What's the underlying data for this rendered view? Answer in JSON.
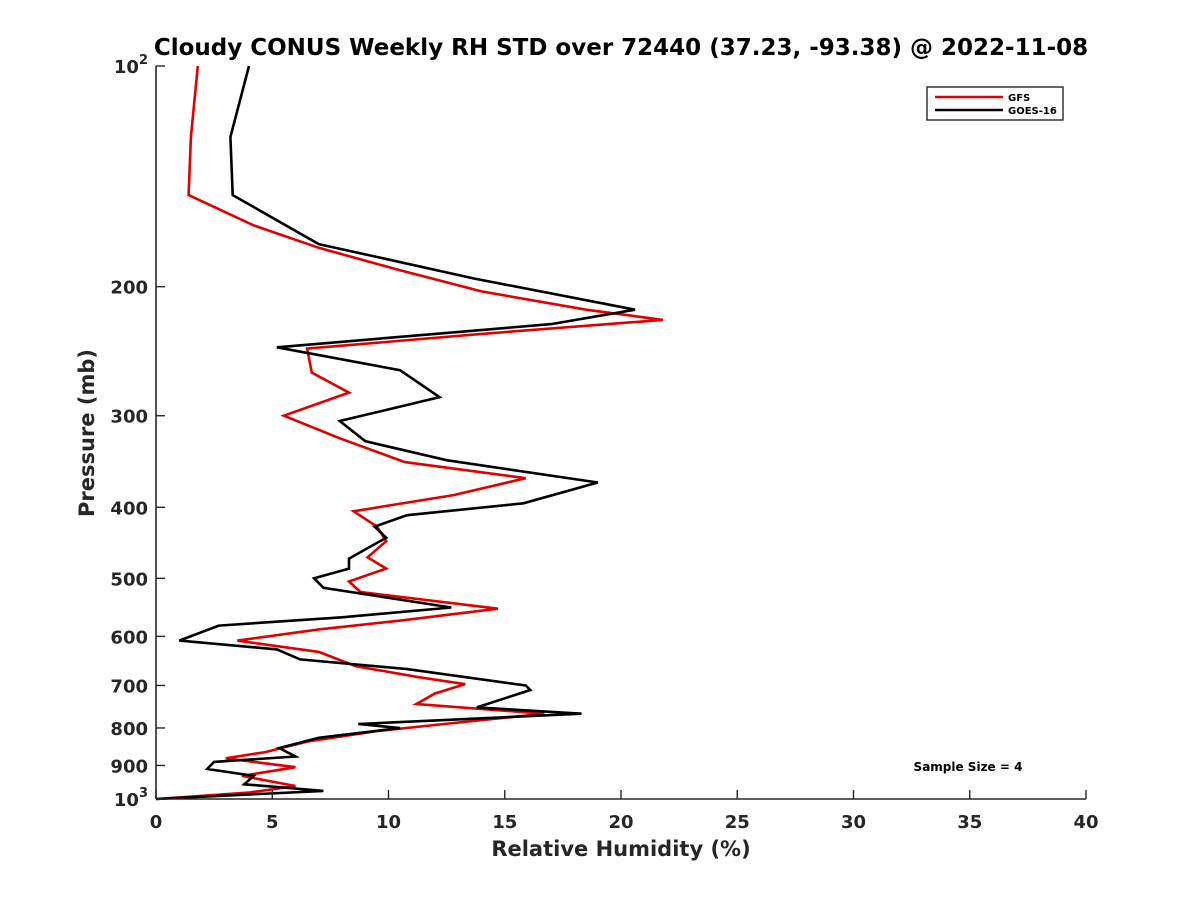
{
  "chart_data": {
    "type": "line",
    "title": "Cloudy CONUS Weekly RH STD over 72440 (37.23, -93.38) @ 2022-11-08",
    "xlabel": "Relative Humidity (%)",
    "ylabel": "Pressure (mb)",
    "xlim": [
      0,
      40
    ],
    "ylim": [
      100,
      1000
    ],
    "y_scale": "log",
    "y_reversed": true,
    "grid": false,
    "legend_position": "top-right",
    "x_ticks": [
      0,
      5,
      10,
      15,
      20,
      25,
      30,
      35,
      40
    ],
    "y_ticks": [
      {
        "value": 100,
        "base": "10",
        "exp": "2"
      },
      {
        "value": 200,
        "label": "200"
      },
      {
        "value": 300,
        "label": "300"
      },
      {
        "value": 400,
        "label": "400"
      },
      {
        "value": 500,
        "label": "500"
      },
      {
        "value": 600,
        "label": "600"
      },
      {
        "value": 700,
        "label": "700"
      },
      {
        "value": 800,
        "label": "800"
      },
      {
        "value": 900,
        "label": "900"
      },
      {
        "value": 1000,
        "base": "10",
        "exp": "3"
      }
    ],
    "annotation": "Sample Size = 4",
    "series": [
      {
        "name": "GFS",
        "color": "#e00000",
        "points": [
          [
            1.8,
            100
          ],
          [
            1.5,
            125
          ],
          [
            1.4,
            150
          ],
          [
            4.2,
            165
          ],
          [
            7.0,
            177
          ],
          [
            10.5,
            190
          ],
          [
            14.0,
            203
          ],
          [
            18.5,
            215
          ],
          [
            21.8,
            222
          ],
          [
            14.0,
            232
          ],
          [
            6.5,
            243
          ],
          [
            6.7,
            262
          ],
          [
            8.3,
            279
          ],
          [
            5.5,
            300
          ],
          [
            7.9,
            322
          ],
          [
            10.7,
            347
          ],
          [
            15.9,
            365
          ],
          [
            12.8,
            385
          ],
          [
            8.5,
            405
          ],
          [
            9.5,
            425
          ],
          [
            9.9,
            445
          ],
          [
            9.1,
            468
          ],
          [
            9.9,
            485
          ],
          [
            8.3,
            505
          ],
          [
            8.8,
            522
          ],
          [
            14.7,
            550
          ],
          [
            10.7,
            570
          ],
          [
            7.0,
            587
          ],
          [
            3.5,
            608
          ],
          [
            7.0,
            630
          ],
          [
            8.6,
            659
          ],
          [
            11.3,
            682
          ],
          [
            13.3,
            697
          ],
          [
            12.0,
            718
          ],
          [
            11.2,
            742
          ],
          [
            16.7,
            765
          ],
          [
            12.4,
            790
          ],
          [
            9.5,
            808
          ],
          [
            6.5,
            835
          ],
          [
            4.7,
            863
          ],
          [
            3.0,
            880
          ],
          [
            6.0,
            905
          ],
          [
            3.7,
            930
          ],
          [
            6.0,
            960
          ],
          [
            4.0,
            980
          ],
          [
            0.0,
            1000
          ]
        ]
      },
      {
        "name": "GOES-16",
        "color": "#000000",
        "points": [
          [
            4.0,
            100
          ],
          [
            3.2,
            125
          ],
          [
            3.3,
            150
          ],
          [
            7.0,
            175
          ],
          [
            13.7,
            195
          ],
          [
            20.6,
            215
          ],
          [
            17.0,
            225
          ],
          [
            12.0,
            232
          ],
          [
            5.2,
            242
          ],
          [
            10.5,
            260
          ],
          [
            12.2,
            283
          ],
          [
            7.9,
            305
          ],
          [
            9.0,
            325
          ],
          [
            12.5,
            345
          ],
          [
            19.0,
            370
          ],
          [
            15.8,
            395
          ],
          [
            10.8,
            410
          ],
          [
            9.4,
            425
          ],
          [
            9.9,
            440
          ],
          [
            8.3,
            470
          ],
          [
            8.3,
            485
          ],
          [
            6.8,
            500
          ],
          [
            7.2,
            515
          ],
          [
            12.7,
            548
          ],
          [
            8.0,
            565
          ],
          [
            2.7,
            580
          ],
          [
            1.0,
            608
          ],
          [
            5.2,
            625
          ],
          [
            6.2,
            645
          ],
          [
            10.8,
            665
          ],
          [
            15.9,
            700
          ],
          [
            16.1,
            710
          ],
          [
            13.8,
            750
          ],
          [
            18.3,
            765
          ],
          [
            8.7,
            790
          ],
          [
            10.5,
            800
          ],
          [
            7.0,
            825
          ],
          [
            5.3,
            852
          ],
          [
            6.0,
            875
          ],
          [
            2.5,
            890
          ],
          [
            2.2,
            910
          ],
          [
            4.2,
            930
          ],
          [
            3.8,
            955
          ],
          [
            7.2,
            975
          ],
          [
            0.0,
            1000
          ]
        ]
      }
    ]
  }
}
